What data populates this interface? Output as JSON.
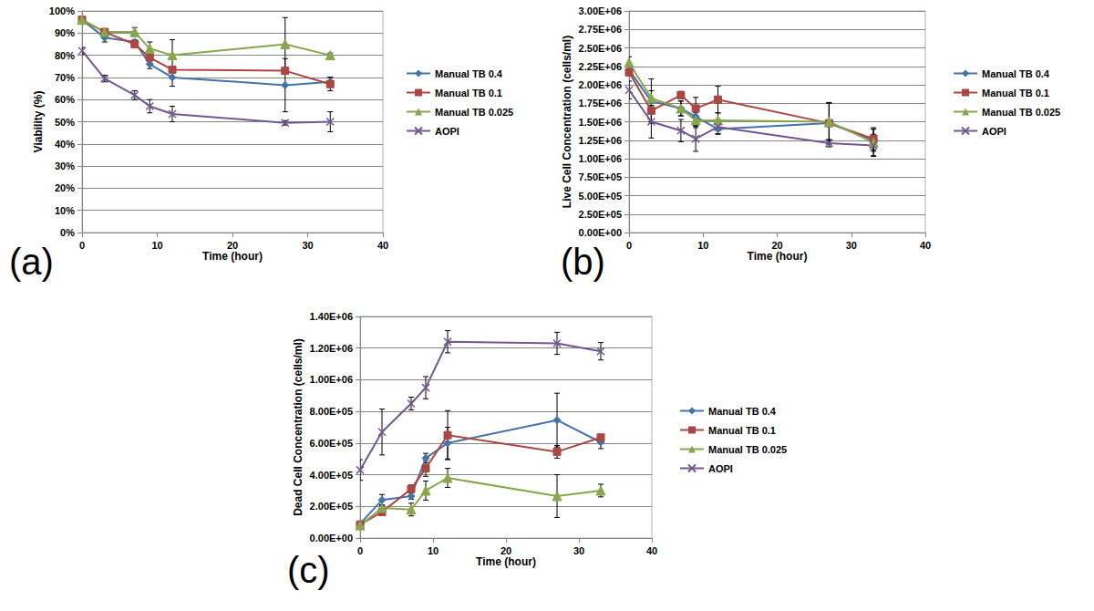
{
  "chart_data": [
    {
      "type": "line",
      "title": "(a)",
      "x_label": "Time (hour)",
      "y_label": "Viability (%)",
      "xlim": [
        0,
        40
      ],
      "xticks": [
        0,
        10,
        20,
        30,
        40
      ],
      "ylim": [
        0,
        100
      ],
      "yticks": [
        {
          "value": 0,
          "label": "0%"
        },
        {
          "value": 10,
          "label": "10%"
        },
        {
          "value": 20,
          "label": "20%"
        },
        {
          "value": 30,
          "label": "30%"
        },
        {
          "value": 40,
          "label": "40%"
        },
        {
          "value": 50,
          "label": "50%"
        },
        {
          "value": 60,
          "label": "60%"
        },
        {
          "value": 70,
          "label": "70%"
        },
        {
          "value": 80,
          "label": "80%"
        },
        {
          "value": 90,
          "label": "90%"
        },
        {
          "value": 100,
          "label": "100%"
        }
      ],
      "grid": true,
      "legend": "right",
      "x": [
        0,
        3,
        7,
        9,
        12,
        27,
        33
      ],
      "series": [
        {
          "name": "Manual TB 0.4",
          "color": "#4572A7",
          "marker": "diamond",
          "values": [
            96,
            88,
            86,
            76,
            70,
            66.5,
            68
          ],
          "errors": [
            0.5,
            2,
            1,
            2,
            4,
            12,
            2
          ]
        },
        {
          "name": "Manual TB 0.1",
          "color": "#AA4643",
          "marker": "square",
          "values": [
            96,
            90.5,
            85,
            79,
            73.5,
            73,
            67
          ],
          "errors": [
            0.5,
            1,
            1,
            1,
            1,
            1,
            3
          ]
        },
        {
          "name": "Manual TB 0.025",
          "color": "#89A54E",
          "marker": "triangle",
          "values": [
            96,
            90.5,
            90.5,
            83,
            80,
            85,
            80
          ],
          "errors": [
            1,
            1,
            2,
            3,
            7,
            12,
            1
          ]
        },
        {
          "name": "AOPI",
          "color": "#71588F",
          "marker": "x",
          "values": [
            82,
            69.5,
            62,
            57,
            53.5,
            49.5,
            50
          ],
          "errors": [
            1.5,
            1.5,
            2,
            3,
            3.5,
            1,
            4.5
          ]
        }
      ]
    },
    {
      "type": "line",
      "title": "(b)",
      "x_label": "Time (hour)",
      "y_label": "Live Cell Concentration (cells/ml)",
      "xlim": [
        0,
        40
      ],
      "xticks": [
        0,
        10,
        20,
        30,
        40
      ],
      "ylim": [
        0,
        3000000
      ],
      "yticks": [
        {
          "value": 0,
          "label": "0.00E+00"
        },
        {
          "value": 250000,
          "label": "2.50E+05"
        },
        {
          "value": 500000,
          "label": "5.00E+05"
        },
        {
          "value": 750000,
          "label": "7.50E+05"
        },
        {
          "value": 1000000,
          "label": "1.00E+06"
        },
        {
          "value": 1250000,
          "label": "1.25E+06"
        },
        {
          "value": 1500000,
          "label": "1.50E+06"
        },
        {
          "value": 1750000,
          "label": "1.75E+06"
        },
        {
          "value": 2000000,
          "label": "2.00E+06"
        },
        {
          "value": 2250000,
          "label": "2.25E+06"
        },
        {
          "value": 2500000,
          "label": "2.50E+06"
        },
        {
          "value": 2750000,
          "label": "2.75E+06"
        },
        {
          "value": 3000000,
          "label": "3.00E+06"
        }
      ],
      "grid": true,
      "legend": "right",
      "x": [
        0,
        3,
        7,
        9,
        12,
        27,
        33
      ],
      "series": [
        {
          "name": "Manual TB 0.4",
          "color": "#4572A7",
          "marker": "diamond",
          "values": [
            2200000,
            1780000,
            1680000,
            1570000,
            1400000,
            1480000,
            1250000
          ],
          "errors": [
            50000,
            300000,
            100000,
            120000,
            60000,
            280000,
            150000
          ]
        },
        {
          "name": "Manual TB 0.1",
          "color": "#AA4643",
          "marker": "square",
          "values": [
            2170000,
            1650000,
            1860000,
            1680000,
            1800000,
            1480000,
            1270000
          ],
          "errors": [
            50000,
            150000,
            50000,
            150000,
            180000,
            280000,
            150000
          ]
        },
        {
          "name": "Manual TB 0.025",
          "color": "#89A54E",
          "marker": "triangle",
          "values": [
            2300000,
            1820000,
            1680000,
            1520000,
            1520000,
            1500000,
            1220000
          ],
          "errors": [
            80000,
            100000,
            100000,
            100000,
            100000,
            250000,
            180000
          ]
        },
        {
          "name": "AOPI",
          "color": "#71588F",
          "marker": "x",
          "values": [
            1930000,
            1500000,
            1380000,
            1270000,
            1430000,
            1210000,
            1180000
          ],
          "errors": [
            120000,
            220000,
            150000,
            170000,
            100000,
            50000,
            150000
          ]
        }
      ]
    },
    {
      "type": "line",
      "title": "(c)",
      "x_label": "Time (hour)",
      "y_label": "Dead Cell Concentration (cells/ml)",
      "xlim": [
        0,
        40
      ],
      "xticks": [
        0,
        10,
        20,
        30,
        40
      ],
      "ylim": [
        0,
        1400000
      ],
      "yticks": [
        {
          "value": 0,
          "label": "0.00E+00"
        },
        {
          "value": 200000,
          "label": "2.00E+05"
        },
        {
          "value": 400000,
          "label": "4.00E+05"
        },
        {
          "value": 600000,
          "label": "6.00E+05"
        },
        {
          "value": 800000,
          "label": "8.00E+05"
        },
        {
          "value": 1000000,
          "label": "1.00E+06"
        },
        {
          "value": 1200000,
          "label": "1.20E+06"
        },
        {
          "value": 1400000,
          "label": "1.40E+06"
        }
      ],
      "grid": true,
      "legend": "right",
      "x": [
        0,
        3,
        7,
        9,
        12,
        27,
        33
      ],
      "series": [
        {
          "name": "Manual TB 0.4",
          "color": "#4572A7",
          "marker": "diamond",
          "values": [
            90000,
            240000,
            265000,
            505000,
            600000,
            745000,
            605000
          ],
          "errors": [
            10000,
            35000,
            20000,
            30000,
            100000,
            170000,
            40000
          ]
        },
        {
          "name": "Manual TB 0.1",
          "color": "#AA4643",
          "marker": "square",
          "values": [
            85000,
            165000,
            310000,
            440000,
            650000,
            545000,
            635000
          ],
          "errors": [
            10000,
            20000,
            25000,
            50000,
            155000,
            40000,
            20000
          ]
        },
        {
          "name": "Manual TB 0.025",
          "color": "#89A54E",
          "marker": "triangle",
          "values": [
            80000,
            190000,
            180000,
            300000,
            380000,
            265000,
            300000
          ],
          "errors": [
            10000,
            20000,
            40000,
            60000,
            60000,
            135000,
            40000
          ]
        },
        {
          "name": "AOPI",
          "color": "#71588F",
          "marker": "x",
          "values": [
            430000,
            670000,
            850000,
            950000,
            1240000,
            1230000,
            1180000
          ],
          "errors": [
            65000,
            145000,
            40000,
            70000,
            70000,
            70000,
            55000
          ]
        }
      ]
    }
  ]
}
